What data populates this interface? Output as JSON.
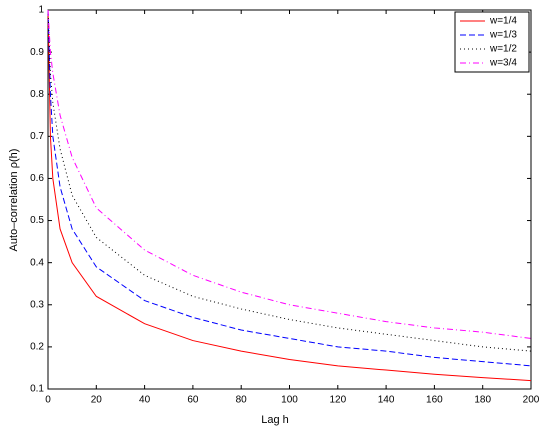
{
  "chart_data": {
    "type": "line",
    "xlabel": "Lag h",
    "ylabel": "Auto–correlation ρ(h)",
    "x": [
      0,
      1,
      2,
      5,
      10,
      20,
      40,
      60,
      80,
      100,
      120,
      140,
      160,
      180,
      200
    ],
    "series": [
      {
        "name": "w=1/4",
        "color": "#ff0000",
        "line_style": "solid",
        "values": [
          1,
          0.7,
          0.6,
          0.48,
          0.4,
          0.32,
          0.255,
          0.215,
          0.19,
          0.17,
          0.155,
          0.145,
          0.135,
          0.127,
          0.12
        ]
      },
      {
        "name": "w=1/3",
        "color": "#0000ff",
        "line_style": "dashed",
        "values": [
          1,
          0.8,
          0.7,
          0.58,
          0.48,
          0.39,
          0.31,
          0.27,
          0.24,
          0.22,
          0.2,
          0.19,
          0.175,
          0.165,
          0.155
        ]
      },
      {
        "name": "w=1/2",
        "color": "#000000",
        "line_style": "dotted",
        "values": [
          1,
          0.85,
          0.78,
          0.67,
          0.56,
          0.46,
          0.37,
          0.32,
          0.29,
          0.265,
          0.245,
          0.23,
          0.215,
          0.2,
          0.19
        ]
      },
      {
        "name": "w=3/4",
        "color": "#ff00ff",
        "line_style": "dashdot",
        "values": [
          1,
          0.9,
          0.85,
          0.75,
          0.65,
          0.53,
          0.43,
          0.37,
          0.33,
          0.3,
          0.28,
          0.26,
          0.245,
          0.235,
          0.22
        ]
      }
    ],
    "xlim": [
      0,
      200
    ],
    "xticks": [
      0,
      20,
      40,
      60,
      80,
      100,
      120,
      140,
      160,
      180,
      200
    ],
    "ylim": [
      0.1,
      1
    ],
    "yticks": [
      0.1,
      0.2,
      0.3,
      0.4,
      0.5,
      0.6,
      0.7,
      0.8,
      0.9,
      1
    ],
    "legend": "top-right"
  }
}
